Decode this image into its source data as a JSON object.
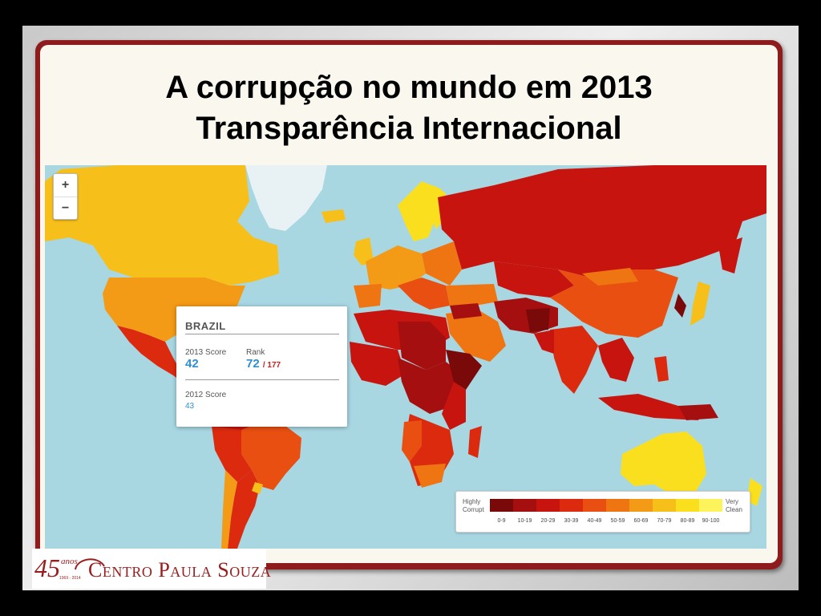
{
  "slide": {
    "title_line1": "A corrupção no mundo em 2013",
    "title_line2": "Transparência Internacional"
  },
  "map": {
    "zoom_in_label": "+",
    "zoom_out_label": "−",
    "ocean_color": "#a8d7e2"
  },
  "tooltip": {
    "country": "BRAZIL",
    "score_2013_label": "2013 Score",
    "score_2013": "42",
    "rank_label": "Rank",
    "rank": "72",
    "rank_total": "/ 177",
    "score_2012_label": "2012 Score",
    "score_2012": "43"
  },
  "legend": {
    "low_label_line1": "Highly",
    "low_label_line2": "Corrupt",
    "high_label_line1": "Very",
    "high_label_line2": "Clean",
    "bins": [
      "0-9",
      "10-19",
      "20-29",
      "30-39",
      "40-49",
      "50-59",
      "60-69",
      "70-79",
      "80-89",
      "90-100"
    ],
    "colors": [
      "#7a0a0a",
      "#a50f0f",
      "#c8140f",
      "#dc2a0f",
      "#e84f10",
      "#ef7513",
      "#f39a16",
      "#f7bf1a",
      "#fadf1e",
      "#fdf35a"
    ]
  },
  "logo": {
    "number": "45",
    "anos": "anos",
    "years": "1969 - 2014",
    "name": "Centro Paula Souza"
  }
}
